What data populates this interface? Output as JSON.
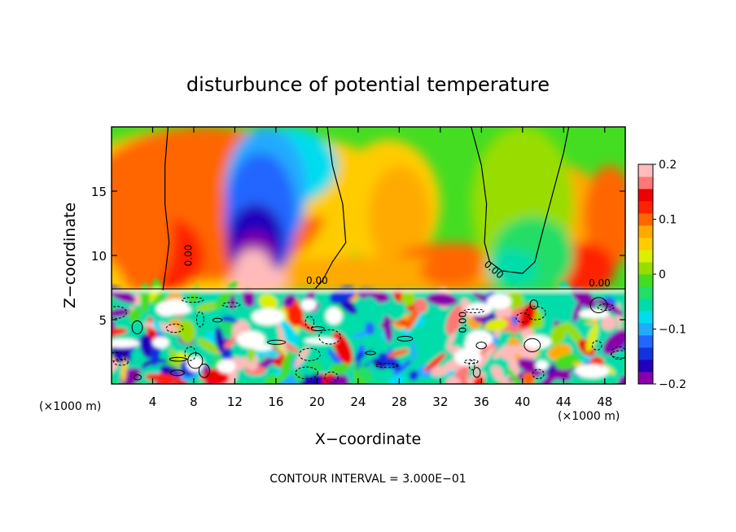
{
  "chart_data": {
    "type": "heatmap",
    "title": "disturbunce of potential temperature",
    "xlabel": "X−coordinate",
    "ylabel": "Z−coordinate",
    "x_unit_left": "(×1000 m)",
    "x_unit_right": "(×1000 m)",
    "xlim": [
      0,
      50
    ],
    "ylim": [
      0,
      20
    ],
    "x_ticks": [
      4,
      8,
      12,
      16,
      20,
      24,
      28,
      32,
      36,
      40,
      44,
      48
    ],
    "y_ticks": [
      5,
      10,
      15
    ],
    "colorbar": {
      "range": [
        -0.2,
        0.2
      ],
      "ticks": [
        {
          "v": 0.2,
          "label": "0.2"
        },
        {
          "v": 0.1,
          "label": "0.1"
        },
        {
          "v": 0,
          "label": "0"
        },
        {
          "v": -0.1,
          "label": "−0.1"
        },
        {
          "v": -0.2,
          "label": "−0.2"
        }
      ],
      "colors": [
        "#8800aa",
        "#2200bb",
        "#1133dd",
        "#2266ff",
        "#22aaff",
        "#00ddee",
        "#00ddaa",
        "#22dd66",
        "#44dd22",
        "#99dd00",
        "#ddee00",
        "#ffcc00",
        "#ffaa00",
        "#ff6600",
        "#ff2200",
        "#ee0000",
        "#ff7777",
        "#ffbbbb"
      ]
    },
    "contour_label": "0.00",
    "footer": "CONTOUR INTERVAL = 3.000E−01",
    "grid": false
  }
}
